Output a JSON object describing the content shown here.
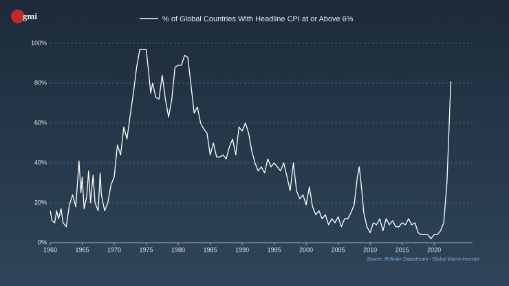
{
  "logo": "gmi",
  "chart_data": {
    "type": "line",
    "title": "% of Global Countries With Headline CPI at or Above 6%",
    "source": "Source: Refinitiv Datastream - Global Macro Investor",
    "x": [
      1960,
      1960.3,
      1960.7,
      1961,
      1961.3,
      1961.7,
      1962,
      1962.5,
      1963,
      1963.5,
      1964,
      1964.5,
      1964.8,
      1965,
      1965.3,
      1965.7,
      1966,
      1966.3,
      1966.7,
      1967,
      1967.5,
      1967.8,
      1968,
      1968.5,
      1969,
      1969.5,
      1970,
      1970.5,
      1971,
      1971.5,
      1972,
      1972.5,
      1973,
      1973.5,
      1974,
      1974.5,
      1975,
      1975.3,
      1975.7,
      1976,
      1976.5,
      1977,
      1977.5,
      1978,
      1978.5,
      1979,
      1979.5,
      1980,
      1980.5,
      1981,
      1981.5,
      1982,
      1982.5,
      1983,
      1983.5,
      1984,
      1984.5,
      1985,
      1985.5,
      1986,
      1986.5,
      1987,
      1987.5,
      1988,
      1988.5,
      1989,
      1989.5,
      1990,
      1990.5,
      1991,
      1991.5,
      1992,
      1992.5,
      1993,
      1993.5,
      1994,
      1994.5,
      1995,
      1995.5,
      1996,
      1996.5,
      1997,
      1997.5,
      1998,
      1998.5,
      1999,
      1999.5,
      2000,
      2000.5,
      2001,
      2001.5,
      2002,
      2002.5,
      2003,
      2003.5,
      2004,
      2004.5,
      2005,
      2005.5,
      2006,
      2006.5,
      2007,
      2007.5,
      2008,
      2008.3,
      2008.7,
      2009,
      2009.5,
      2010,
      2010.5,
      2011,
      2011.5,
      2012,
      2012.5,
      2013,
      2013.5,
      2014,
      2014.5,
      2015,
      2015.5,
      2016,
      2016.5,
      2017,
      2017.5,
      2018,
      2018.5,
      2019,
      2019.5,
      2020,
      2020.5,
      2021,
      2021.5,
      2022,
      2022.3,
      2022.6
    ],
    "series": [
      {
        "name": "% of Global Countries With Headline CPI at or Above 6%",
        "color": "#ffffff",
        "values": [
          16,
          11,
          10,
          16,
          12,
          17,
          10,
          8,
          19,
          24,
          18,
          41,
          25,
          33,
          17,
          23,
          36,
          20,
          34,
          20,
          16,
          35,
          24,
          16,
          20,
          29,
          33,
          49,
          44,
          58,
          52,
          64,
          75,
          88,
          97,
          97,
          97,
          88,
          75,
          80,
          73,
          72,
          84,
          72,
          63,
          72,
          88,
          89,
          89,
          94,
          93,
          79,
          65,
          68,
          60,
          57,
          55,
          44,
          50,
          43,
          43,
          44,
          42,
          48,
          52,
          44,
          58,
          56,
          60,
          55,
          46,
          40,
          36,
          38,
          35,
          42,
          38,
          40,
          38,
          36,
          40,
          33,
          26,
          40,
          26,
          22,
          24,
          19,
          28,
          18,
          14,
          16,
          12,
          14,
          9,
          12,
          10,
          13,
          8,
          12,
          12,
          15,
          19,
          33,
          38,
          26,
          15,
          8,
          5,
          10,
          9,
          12,
          6,
          12,
          9,
          11,
          8,
          8,
          10,
          9,
          12,
          9,
          10,
          5,
          4,
          4,
          4,
          2,
          4,
          4,
          6,
          10,
          30,
          55,
          81
        ]
      }
    ],
    "xlim": [
      1960,
      2026
    ],
    "ylim": [
      0,
      100
    ],
    "xticks": [
      1960,
      1965,
      1970,
      1975,
      1980,
      1985,
      1990,
      1995,
      2000,
      2005,
      2010,
      2015,
      2020
    ],
    "yticks": [
      {
        "value": 0,
        "label": "0%"
      },
      {
        "value": 20,
        "label": "20%"
      },
      {
        "value": 40,
        "label": "40%"
      },
      {
        "value": 60,
        "label": "60%"
      },
      {
        "value": 80,
        "label": "80%"
      },
      {
        "value": 100,
        "label": "100%"
      }
    ],
    "grid": true
  }
}
